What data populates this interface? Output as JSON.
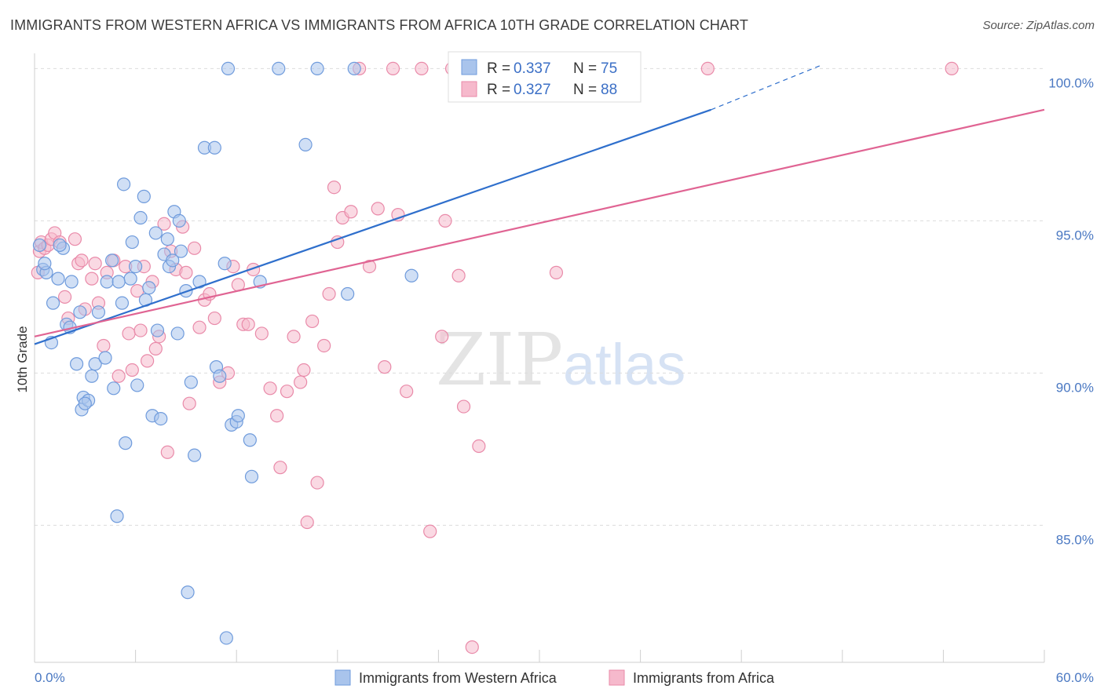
{
  "title": "IMMIGRANTS FROM WESTERN AFRICA VS IMMIGRANTS FROM AFRICA 10TH GRADE CORRELATION CHART",
  "source": "Source: ZipAtlas.com",
  "watermark": {
    "zip": "ZIP",
    "atlas": "atlas"
  },
  "colors": {
    "blue_fill": "#a9c4ec",
    "blue_stroke": "#6f9bdc",
    "blue_line": "#2f6fcc",
    "pink_fill": "#f6b9cc",
    "pink_stroke": "#e98aa9",
    "pink_line": "#e06493",
    "tick_text": "#4a78c2",
    "grid": "#dcdcdc"
  },
  "legend": {
    "r_label": "R =",
    "n_label": "N =",
    "series": [
      {
        "r": "0.337",
        "n": "75"
      },
      {
        "r": "0.327",
        "n": "88"
      }
    ]
  },
  "chart_data": {
    "type": "scatter",
    "title": "IMMIGRANTS FROM WESTERN AFRICA VS IMMIGRANTS FROM AFRICA 10TH GRADE CORRELATION CHART",
    "xlabel": "",
    "ylabel": "10th Grade",
    "xlim": [
      0,
      60
    ],
    "ylim": [
      80.5,
      100.5
    ],
    "x_tick_labels": [
      "0.0%",
      "60.0%"
    ],
    "y_ticks": [
      85,
      90,
      95,
      100
    ],
    "y_tick_labels": [
      "85.0%",
      "90.0%",
      "95.0%",
      "100.0%"
    ],
    "grid": true,
    "legend_position": "top-center",
    "series": [
      {
        "name": "Immigrants from Western Africa",
        "color": "#6f9bdc",
        "r": 0.337,
        "n": 75,
        "trend": {
          "x0": 0,
          "y0": 90.95,
          "x1": 40.2,
          "y1": 98.65,
          "dash_to_x": 46.7,
          "dash_to_y": 100.1
        },
        "points": [
          [
            0.3,
            94.2
          ],
          [
            0.5,
            93.4
          ],
          [
            0.7,
            93.3
          ],
          [
            1.0,
            91.0
          ],
          [
            1.1,
            92.3
          ],
          [
            1.4,
            93.1
          ],
          [
            1.7,
            94.1
          ],
          [
            1.9,
            91.6
          ],
          [
            2.1,
            91.5
          ],
          [
            2.5,
            90.3
          ],
          [
            2.7,
            92.0
          ],
          [
            2.8,
            88.8
          ],
          [
            2.9,
            89.2
          ],
          [
            3.2,
            89.1
          ],
          [
            3.4,
            89.9
          ],
          [
            3.6,
            90.3
          ],
          [
            3.8,
            92.0
          ],
          [
            4.2,
            90.5
          ],
          [
            4.3,
            93.0
          ],
          [
            4.6,
            93.7
          ],
          [
            4.7,
            89.5
          ],
          [
            4.9,
            85.3
          ],
          [
            5.2,
            92.3
          ],
          [
            5.3,
            96.2
          ],
          [
            5.4,
            87.7
          ],
          [
            5.7,
            93.1
          ],
          [
            5.8,
            94.3
          ],
          [
            6.0,
            93.5
          ],
          [
            6.1,
            89.6
          ],
          [
            6.3,
            95.1
          ],
          [
            6.5,
            95.8
          ],
          [
            6.6,
            92.4
          ],
          [
            6.8,
            92.8
          ],
          [
            7.0,
            88.6
          ],
          [
            7.2,
            94.6
          ],
          [
            7.3,
            91.4
          ],
          [
            7.5,
            88.5
          ],
          [
            7.7,
            93.9
          ],
          [
            7.9,
            94.4
          ],
          [
            8.0,
            93.5
          ],
          [
            8.2,
            93.7
          ],
          [
            8.3,
            95.3
          ],
          [
            8.5,
            91.3
          ],
          [
            8.6,
            95.0
          ],
          [
            8.7,
            94.0
          ],
          [
            9.0,
            92.7
          ],
          [
            9.1,
            82.8
          ],
          [
            9.3,
            89.7
          ],
          [
            9.5,
            87.3
          ],
          [
            9.8,
            93.0
          ],
          [
            10.1,
            97.4
          ],
          [
            10.7,
            97.4
          ],
          [
            10.8,
            90.2
          ],
          [
            11.0,
            89.9
          ],
          [
            11.3,
            93.6
          ],
          [
            11.4,
            81.3
          ],
          [
            11.5,
            100.0
          ],
          [
            11.7,
            88.3
          ],
          [
            12.0,
            88.4
          ],
          [
            12.1,
            88.6
          ],
          [
            12.8,
            87.8
          ],
          [
            12.9,
            86.6
          ],
          [
            13.4,
            93.0
          ],
          [
            14.5,
            100.0
          ],
          [
            16.1,
            97.5
          ],
          [
            16.8,
            100.0
          ],
          [
            18.6,
            92.6
          ],
          [
            19.0,
            100.0
          ],
          [
            22.4,
            93.2
          ],
          [
            33.1,
            100.0
          ],
          [
            2.2,
            93.0
          ],
          [
            5.0,
            93.0
          ],
          [
            3.0,
            89.0
          ],
          [
            0.6,
            93.6
          ],
          [
            1.5,
            94.2
          ]
        ]
      },
      {
        "name": "Immigrants from Africa",
        "color": "#e98aa9",
        "r": 0.327,
        "n": 88,
        "trend": {
          "x0": 0,
          "y0": 91.2,
          "x1": 60,
          "y1": 98.65
        },
        "points": [
          [
            0.2,
            93.3
          ],
          [
            0.3,
            94.0
          ],
          [
            0.4,
            94.3
          ],
          [
            0.6,
            94.1
          ],
          [
            0.8,
            94.2
          ],
          [
            1.0,
            94.4
          ],
          [
            1.2,
            94.6
          ],
          [
            1.5,
            94.3
          ],
          [
            1.8,
            92.5
          ],
          [
            2.0,
            91.8
          ],
          [
            2.4,
            94.4
          ],
          [
            2.6,
            93.6
          ],
          [
            2.8,
            93.7
          ],
          [
            3.0,
            92.1
          ],
          [
            3.4,
            93.1
          ],
          [
            3.6,
            93.6
          ],
          [
            3.8,
            92.3
          ],
          [
            4.1,
            90.9
          ],
          [
            4.3,
            93.3
          ],
          [
            4.7,
            93.7
          ],
          [
            5.0,
            89.9
          ],
          [
            5.4,
            93.5
          ],
          [
            5.6,
            91.3
          ],
          [
            5.8,
            90.1
          ],
          [
            6.1,
            92.7
          ],
          [
            6.3,
            91.4
          ],
          [
            6.5,
            93.5
          ],
          [
            6.7,
            90.4
          ],
          [
            7.0,
            93.0
          ],
          [
            7.2,
            90.8
          ],
          [
            7.4,
            91.2
          ],
          [
            7.7,
            94.9
          ],
          [
            7.9,
            87.4
          ],
          [
            8.1,
            94.0
          ],
          [
            8.4,
            93.4
          ],
          [
            8.8,
            94.8
          ],
          [
            9.0,
            93.3
          ],
          [
            9.2,
            89.0
          ],
          [
            9.5,
            94.1
          ],
          [
            9.8,
            91.5
          ],
          [
            10.1,
            92.4
          ],
          [
            10.4,
            92.6
          ],
          [
            10.7,
            91.8
          ],
          [
            11.0,
            89.7
          ],
          [
            11.5,
            90.0
          ],
          [
            11.8,
            93.5
          ],
          [
            12.1,
            92.9
          ],
          [
            12.4,
            91.6
          ],
          [
            12.7,
            91.6
          ],
          [
            13.0,
            93.4
          ],
          [
            13.5,
            91.3
          ],
          [
            14.0,
            89.5
          ],
          [
            14.4,
            88.6
          ],
          [
            14.6,
            86.9
          ],
          [
            15.0,
            89.4
          ],
          [
            15.4,
            91.2
          ],
          [
            15.8,
            89.7
          ],
          [
            16.0,
            90.1
          ],
          [
            16.2,
            85.1
          ],
          [
            16.5,
            91.7
          ],
          [
            16.8,
            86.4
          ],
          [
            17.2,
            90.9
          ],
          [
            17.5,
            92.6
          ],
          [
            17.8,
            96.1
          ],
          [
            18.0,
            94.3
          ],
          [
            18.3,
            95.1
          ],
          [
            18.8,
            95.3
          ],
          [
            19.3,
            100.0
          ],
          [
            19.9,
            93.5
          ],
          [
            20.4,
            95.4
          ],
          [
            20.8,
            90.2
          ],
          [
            21.3,
            100.0
          ],
          [
            21.6,
            95.2
          ],
          [
            22.1,
            89.4
          ],
          [
            23.0,
            100.0
          ],
          [
            23.5,
            84.8
          ],
          [
            24.2,
            91.2
          ],
          [
            24.4,
            95.0
          ],
          [
            24.8,
            100.0
          ],
          [
            25.2,
            93.2
          ],
          [
            25.5,
            88.9
          ],
          [
            26.0,
            81.0
          ],
          [
            26.4,
            87.6
          ],
          [
            29.5,
            100.0
          ],
          [
            31.0,
            93.3
          ],
          [
            34.8,
            100.0
          ],
          [
            40.0,
            100.0
          ],
          [
            54.5,
            100.0
          ]
        ]
      }
    ]
  },
  "bottom_legend": [
    "Immigrants from Western Africa",
    "Immigrants from Africa"
  ]
}
